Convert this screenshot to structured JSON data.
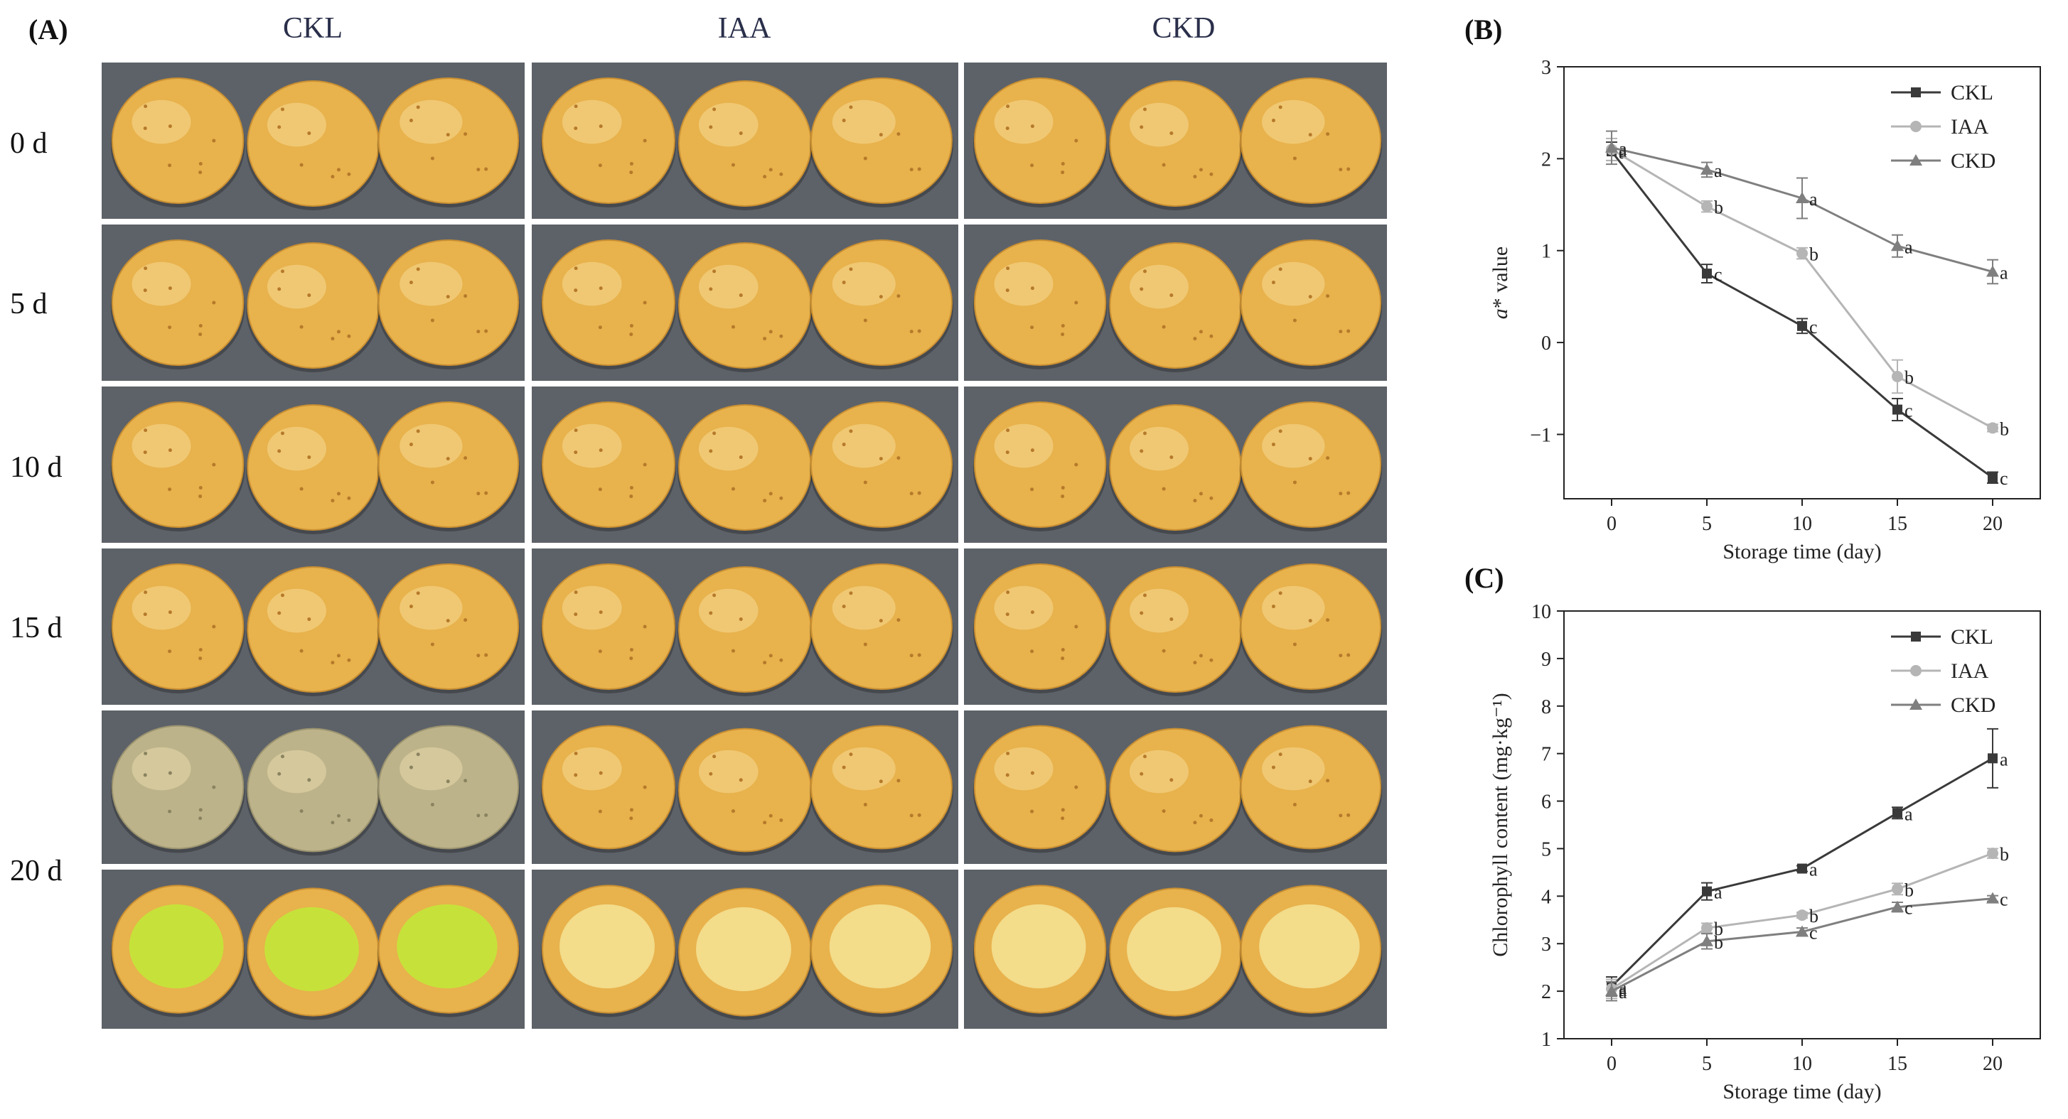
{
  "panels": {
    "a_label": "(A)",
    "b_label": "(B)",
    "c_label": "(C)"
  },
  "photo_grid": {
    "columns": [
      "CKL",
      "IAA",
      "CKD"
    ],
    "rows": [
      "0 d",
      "5 d",
      "10 d",
      "15 d",
      "20 d"
    ],
    "colors": {
      "background": "#5d6268",
      "potato_skin": "#e8b24c",
      "potato_skin_green": "#bdb38a",
      "cut_flesh": "#f3dc8a",
      "green_flesh": "#c6e23a"
    }
  },
  "chart_data": [
    {
      "type": "line",
      "title": "",
      "xlabel": "Storage time (day)",
      "ylabel": "a* value",
      "ylabel_italic": "a",
      "ylabel_rest": "* value",
      "x": [
        0,
        5,
        10,
        15,
        20
      ],
      "xlim": [
        -2.5,
        22.5
      ],
      "ylim": [
        -1.7,
        3
      ],
      "xticks": [
        0,
        5,
        10,
        15,
        20
      ],
      "yticks": [
        -1,
        0,
        1,
        2,
        3
      ],
      "ytick_labels": [
        "−1",
        "0",
        "1",
        "2",
        "3"
      ],
      "legend_position": "top-right",
      "series": [
        {
          "name": "CKL",
          "marker": "square",
          "color": "#3a3a3a",
          "values": [
            2.08,
            0.75,
            0.18,
            -0.73,
            -1.47
          ],
          "errors": [
            0.1,
            0.1,
            0.08,
            0.12,
            0.06
          ],
          "letters": [
            "a",
            "c",
            "c",
            "c",
            "c"
          ]
        },
        {
          "name": "IAA",
          "marker": "circle",
          "color": "#b5b5b5",
          "values": [
            2.1,
            1.48,
            0.97,
            -0.37,
            -0.93
          ],
          "errors": [
            0.12,
            0.06,
            0.06,
            0.18,
            0.04
          ],
          "letters": [
            "a",
            "b",
            "b",
            "b",
            "b"
          ]
        },
        {
          "name": "CKD",
          "marker": "triangle",
          "color": "#7f7f7f",
          "values": [
            2.12,
            1.88,
            1.57,
            1.05,
            0.77
          ],
          "errors": [
            0.18,
            0.08,
            0.22,
            0.12,
            0.13
          ],
          "letters": [
            "a",
            "a",
            "a",
            "a",
            "a"
          ]
        }
      ]
    },
    {
      "type": "line",
      "title": "",
      "xlabel": "Storage time (day)",
      "ylabel": "Chlorophyll content (mg·kg⁻¹)",
      "x": [
        0,
        5,
        10,
        15,
        20
      ],
      "xlim": [
        -2.5,
        22.5
      ],
      "ylim": [
        1,
        10
      ],
      "xticks": [
        0,
        5,
        10,
        15,
        20
      ],
      "yticks": [
        1,
        2,
        3,
        4,
        5,
        6,
        7,
        8,
        9,
        10
      ],
      "ytick_labels": [
        "1",
        "2",
        "3",
        "4",
        "5",
        "6",
        "7",
        "8",
        "9",
        "10"
      ],
      "legend_position": "top-right",
      "series": [
        {
          "name": "CKL",
          "marker": "square",
          "color": "#3a3a3a",
          "values": [
            2.1,
            4.1,
            4.58,
            5.75,
            6.9
          ],
          "errors": [
            0.2,
            0.18,
            0.06,
            0.12,
            0.62
          ],
          "letters": [
            "a",
            "a",
            "a",
            "a",
            "a"
          ]
        },
        {
          "name": "IAA",
          "marker": "circle",
          "color": "#b5b5b5",
          "values": [
            2.05,
            3.33,
            3.6,
            4.15,
            4.9
          ],
          "errors": [
            0.2,
            0.1,
            0.06,
            0.12,
            0.1
          ],
          "letters": [
            "a",
            "b",
            "b",
            "b",
            "b"
          ]
        },
        {
          "name": "CKD",
          "marker": "triangle",
          "color": "#7f7f7f",
          "values": [
            2.0,
            3.05,
            3.25,
            3.77,
            3.95
          ],
          "errors": [
            0.2,
            0.16,
            0.08,
            0.1,
            0.06
          ],
          "letters": [
            "a",
            "b",
            "c",
            "c",
            "c"
          ]
        }
      ]
    }
  ]
}
